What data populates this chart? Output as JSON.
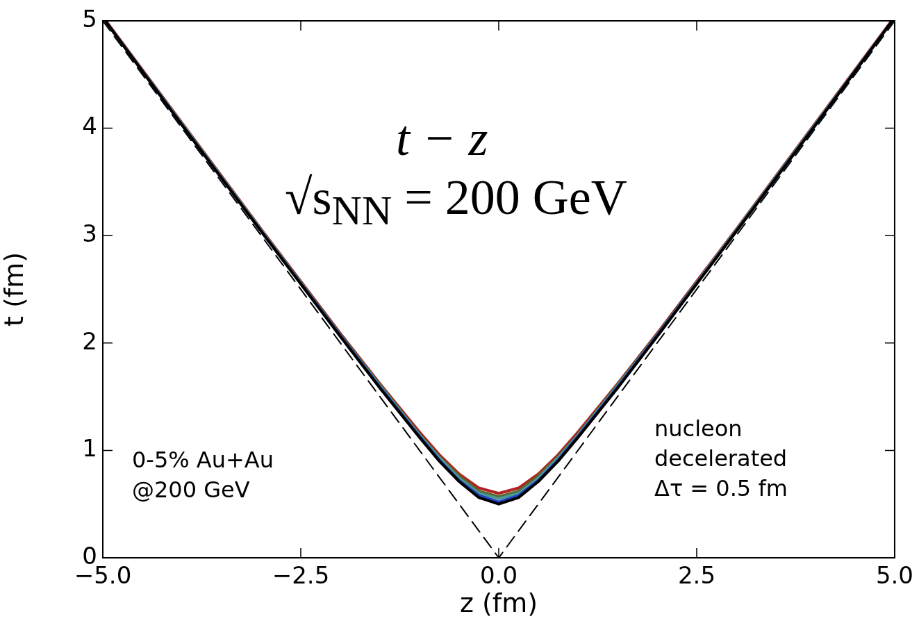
{
  "chart_data": {
    "type": "line",
    "xlabel": "z (fm)",
    "ylabel": "t (fm)",
    "annotations": [
      "t − z",
      "√s$_{NN}$ = 200 GeV",
      "0-5% Au+Au",
      "@200 GeV",
      "nucleon",
      "decelerated",
      "Δτ = 0.5 fm"
    ],
    "x": [
      -4.96,
      -4,
      -3,
      -2,
      -1.5,
      -1,
      -0.75,
      -0.5,
      -0.25,
      0,
      0.25,
      0.5,
      0.75,
      1,
      1.5,
      2,
      3,
      4,
      4.96
    ],
    "xlim": [
      -5,
      5
    ],
    "xticks": [
      {
        "value": -5,
        "label": "−5.0"
      },
      {
        "value": -2.5,
        "label": "−2.5"
      },
      {
        "value": 0,
        "label": "0.0"
      },
      {
        "value": 2.5,
        "label": "2.5"
      },
      {
        "value": 5,
        "label": "5.0"
      }
    ],
    "ylim": [
      0,
      5
    ],
    "yticks": [
      0,
      1,
      2,
      3,
      4,
      5
    ],
    "grid": false,
    "legend": false,
    "marker": "none",
    "series": [
      {
        "color": "#000000",
        "values": [
          4.99,
          4.03,
          3.04,
          2.06,
          1.58,
          1.12,
          0.9,
          0.71,
          0.56,
          0.5,
          0.56,
          0.71,
          0.9,
          1.12,
          1.58,
          2.06,
          3.04,
          4.03,
          4.99
        ]
      },
      {
        "color": "#2040c0",
        "values": [
          4.99,
          4.03,
          3.04,
          2.07,
          1.59,
          1.13,
          0.91,
          0.72,
          0.58,
          0.52,
          0.58,
          0.72,
          0.91,
          1.13,
          1.59,
          2.07,
          3.04,
          4.03,
          4.99
        ]
      },
      {
        "color": "#4a9a9a",
        "values": [
          4.99,
          4.04,
          3.05,
          2.07,
          1.6,
          1.14,
          0.93,
          0.74,
          0.6,
          0.55,
          0.6,
          0.74,
          0.93,
          1.14,
          1.6,
          2.07,
          3.05,
          4.04,
          4.99
        ]
      },
      {
        "color": "#556b2f",
        "values": [
          4.99,
          4.04,
          3.05,
          2.08,
          1.61,
          1.15,
          0.94,
          0.76,
          0.62,
          0.57,
          0.62,
          0.76,
          0.94,
          1.15,
          1.61,
          2.08,
          3.05,
          4.04,
          4.99
        ]
      },
      {
        "color": "#b22222",
        "values": [
          5.0,
          4.05,
          3.06,
          2.09,
          1.62,
          1.17,
          0.96,
          0.78,
          0.65,
          0.6,
          0.65,
          0.78,
          0.96,
          1.17,
          1.62,
          2.09,
          3.06,
          4.05,
          5.0
        ]
      },
      {
        "type": "line",
        "color": "#000000",
        "line_style": "dashed",
        "x": [
          -5,
          0,
          5
        ],
        "values": [
          5,
          0,
          5
        ]
      }
    ]
  }
}
